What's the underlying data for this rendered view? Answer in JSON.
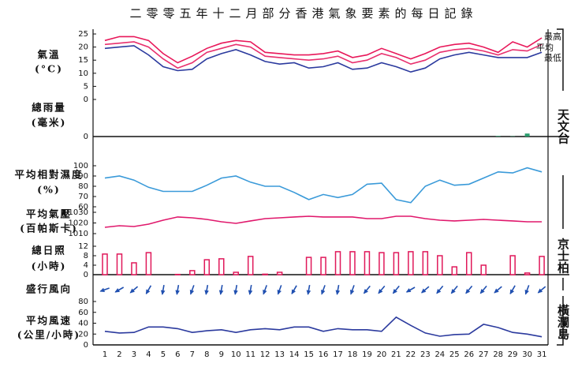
{
  "chart_data": [
    {
      "type": "line",
      "title": "二零零五年十二月部分香港氣象要素的每日記錄",
      "ylabel": [
        "氣溫",
        "(°C)"
      ],
      "station": "天文台",
      "ylim": [
        0,
        27
      ],
      "yticks": [
        0,
        5,
        10,
        15,
        20,
        25
      ],
      "series": [
        {
          "name": "最高",
          "color": "#e8185a",
          "values": [
            22.5,
            24,
            24,
            22.5,
            17.5,
            14,
            16.5,
            19.5,
            21.5,
            22.5,
            22,
            18,
            17.5,
            17,
            17,
            17.5,
            18.5,
            16,
            17,
            19.5,
            17.5,
            15.5,
            17.5,
            20,
            21,
            21.5,
            20,
            18,
            22,
            20,
            23.5
          ]
        },
        {
          "name": "平均",
          "color": "#e8306e",
          "values": [
            21,
            21.5,
            22,
            20,
            15.5,
            12,
            14,
            18,
            19.5,
            21,
            20,
            16.5,
            16,
            15.5,
            15,
            15.5,
            16.5,
            14,
            15,
            17.5,
            16,
            13.5,
            15,
            18,
            19,
            19.5,
            18.5,
            17,
            19,
            18.5,
            21
          ]
        },
        {
          "name": "最低",
          "color": "#2b3a9e",
          "values": [
            19.5,
            20,
            20.5,
            17,
            12.5,
            11,
            11.5,
            15.5,
            17.5,
            19,
            17,
            14.5,
            13.5,
            14,
            12,
            12.5,
            14,
            11.5,
            12,
            14,
            12.5,
            10.5,
            12,
            15.5,
            17,
            18,
            17,
            16,
            16,
            16,
            18
          ]
        }
      ]
    },
    {
      "type": "bar",
      "ylabel": [
        "總雨量",
        "(毫米)"
      ],
      "ylim": [
        0,
        20
      ],
      "yticks": [
        0
      ],
      "color": "#2a9d6e",
      "values": [
        0,
        0,
        0,
        0,
        0,
        0,
        0,
        0,
        0,
        0,
        0,
        0,
        0,
        0,
        0,
        0,
        0,
        0,
        0,
        0,
        0,
        0,
        0,
        0,
        0,
        0,
        0,
        0.4,
        0.2,
        2,
        0
      ]
    },
    {
      "type": "line",
      "ylabel": [
        "平均相對濕度",
        "(%)"
      ],
      "ylim": [
        52,
        108
      ],
      "yticks": [
        60,
        70,
        80,
        90,
        100
      ],
      "series": [
        {
          "color": "#3a9ad9",
          "values": [
            88,
            90,
            86,
            79,
            75,
            75,
            75,
            81,
            88,
            90,
            84,
            80,
            80,
            74,
            67,
            72,
            69,
            72,
            82,
            83,
            67,
            64,
            80,
            86,
            81,
            82,
            88,
            94,
            93,
            98,
            94
          ]
        }
      ]
    },
    {
      "type": "line",
      "ylabel": [
        "平均氣壓",
        "(百帕斯卡)"
      ],
      "ylim": [
        1005,
        1033
      ],
      "yticks": [
        1010,
        1020,
        1030
      ],
      "series": [
        {
          "color": "#e0186c",
          "values": [
            1015.9,
            1017.4,
            1016.7,
            1018.9,
            1022.6,
            1025.6,
            1024.8,
            1023.3,
            1021.1,
            1019.6,
            1021.9,
            1024.1,
            1024.8,
            1025.6,
            1026.3,
            1025.6,
            1025.6,
            1025.6,
            1024.1,
            1024.1,
            1026.3,
            1026.3,
            1024.1,
            1022.6,
            1021.9,
            1022.6,
            1023.3,
            1022.6,
            1021.9,
            1021.1,
            1021.1
          ]
        }
      ]
    },
    {
      "type": "bar",
      "ylabel": [
        "總日照",
        "(小時)"
      ],
      "station": "京士柏",
      "ylim": [
        0,
        14
      ],
      "yticks": [
        0,
        4,
        8,
        12
      ],
      "color": "#e0185a",
      "values": [
        8.7,
        8.7,
        5,
        9.3,
        0,
        0.1,
        1.7,
        6.3,
        6.7,
        1,
        7.7,
        0.2,
        1,
        0,
        7.3,
        7.3,
        9.7,
        9.7,
        9.7,
        9.3,
        9.3,
        9.7,
        9.7,
        8,
        3.3,
        9.3,
        4,
        0,
        8,
        0.7,
        7.7
      ]
    },
    {
      "type": "arrow",
      "ylabel": [
        "盛行風向"
      ],
      "station": "橫瀾島",
      "color": "#1f4fb0",
      "values": [
        70,
        60,
        50,
        30,
        10,
        10,
        20,
        10,
        10,
        10,
        10,
        20,
        20,
        30,
        10,
        20,
        10,
        20,
        40,
        40,
        40,
        60,
        50,
        40,
        40,
        40,
        40,
        50,
        30,
        20,
        50
      ]
    },
    {
      "type": "line",
      "ylabel": [
        "平均風速",
        "(公里/小時)"
      ],
      "ylim": [
        0,
        88
      ],
      "yticks": [
        0,
        20,
        40,
        60,
        80
      ],
      "categories": [
        "1",
        "2",
        "3",
        "4",
        "5",
        "6",
        "7",
        "8",
        "9",
        "10",
        "11",
        "12",
        "13",
        "14",
        "15",
        "16",
        "17",
        "18",
        "19",
        "20",
        "21",
        "22",
        "23",
        "24",
        "25",
        "26",
        "27",
        "28",
        "29",
        "30",
        "31"
      ],
      "series": [
        {
          "color": "#2b3a9e",
          "values": [
            25,
            22,
            23,
            33,
            33,
            30,
            23,
            26,
            28,
            23,
            28,
            30,
            28,
            33,
            33,
            25,
            30,
            28,
            28,
            25,
            51,
            36,
            22,
            16,
            19,
            20,
            38,
            32,
            23,
            20,
            15
          ]
        }
      ]
    }
  ]
}
